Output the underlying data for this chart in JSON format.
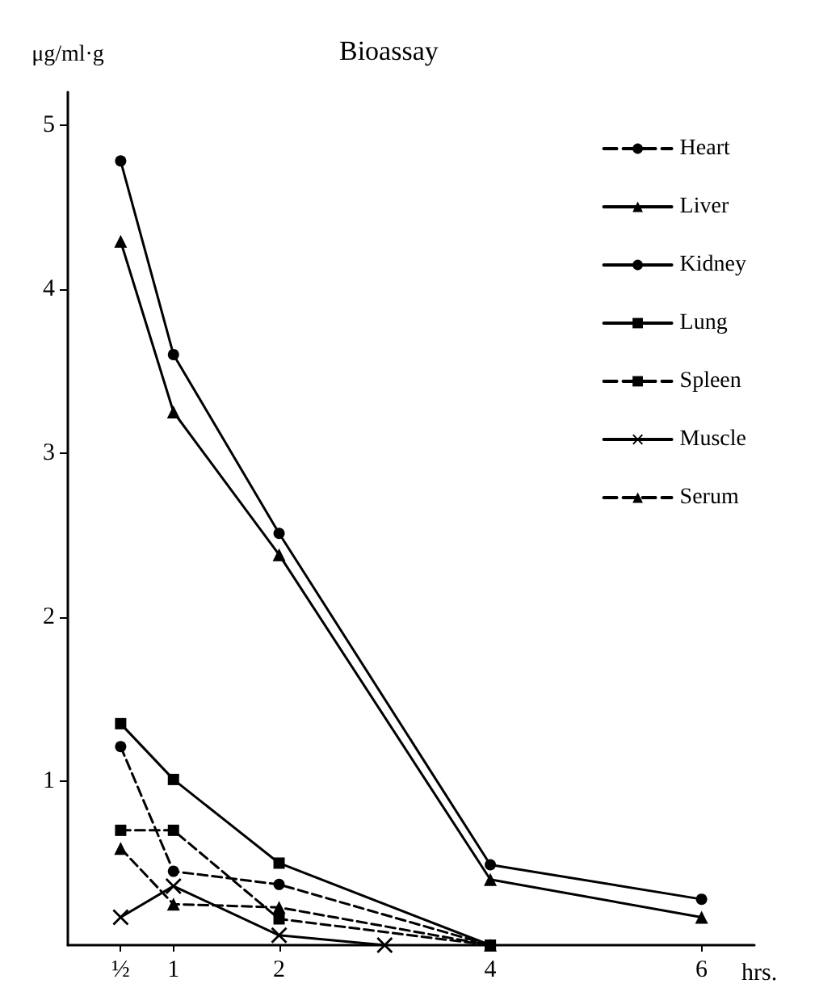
{
  "chart_data": {
    "type": "line",
    "title": "Bioassay",
    "xlabel": "hrs.",
    "ylabel": "μg/ml·g",
    "x": [
      0.5,
      1,
      2,
      4,
      6
    ],
    "series": [
      {
        "name": "Heart",
        "color": "#000000",
        "marker": "circle",
        "line_style": "dashed",
        "x": [
          0.5,
          1,
          2,
          4
        ],
        "values": [
          1.21,
          0.45,
          0.37,
          0
        ]
      },
      {
        "name": "Liver",
        "color": "#000000",
        "marker": "triangle",
        "line_style": "solid",
        "values": [
          4.29,
          3.25,
          2.38,
          0.4,
          0.17
        ]
      },
      {
        "name": "Kidney",
        "color": "#000000",
        "marker": "circle",
        "line_style": "solid",
        "values": [
          4.78,
          3.6,
          2.51,
          0.49,
          0.28
        ]
      },
      {
        "name": "Lung",
        "color": "#000000",
        "marker": "square",
        "line_style": "solid",
        "x": [
          0.5,
          1,
          2,
          4
        ],
        "values": [
          1.35,
          1.01,
          0.5,
          0
        ]
      },
      {
        "name": "Spleen",
        "color": "#000000",
        "marker": "square",
        "line_style": "dashed",
        "x": [
          0.5,
          1,
          2,
          4
        ],
        "values": [
          0.7,
          0.7,
          0.16,
          0
        ]
      },
      {
        "name": "Muscle",
        "color": "#000000",
        "marker": "cross",
        "line_style": "solid",
        "x": [
          0.5,
          1,
          2,
          3
        ],
        "values": [
          0.17,
          0.36,
          0.06,
          0
        ]
      },
      {
        "name": "Serum",
        "color": "#000000",
        "marker": "triangle",
        "line_style": "dashed",
        "x": [
          0.5,
          1,
          2,
          4
        ],
        "values": [
          0.59,
          0.25,
          0.23,
          0
        ]
      }
    ],
    "xlim": [
      0,
      6.5
    ],
    "xticks": [
      {
        "value": 0.5,
        "label": "½"
      },
      1,
      2,
      4,
      6
    ],
    "ylim": [
      0,
      5.2
    ],
    "yticks": [
      1,
      2,
      3,
      4,
      5
    ],
    "grid": false,
    "legend": "top right"
  }
}
